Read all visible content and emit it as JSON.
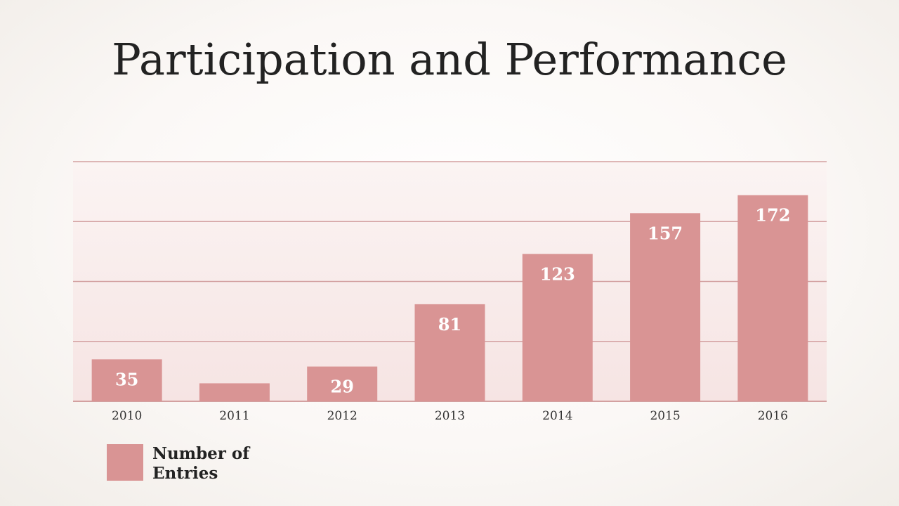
{
  "slide": {
    "title": "Participation and Performance"
  },
  "chart_data": {
    "type": "bar",
    "title": "Participation and Performance",
    "categories": [
      "2010",
      "2011",
      "2012",
      "2013",
      "2014",
      "2015",
      "2016"
    ],
    "series": [
      {
        "name": "Number of Entries",
        "values": [
          35,
          15,
          29,
          81,
          123,
          157,
          172
        ],
        "data_labels": [
          "35",
          "",
          "29",
          "81",
          "123",
          "157",
          "172"
        ],
        "color": "#d99494"
      }
    ],
    "ylim": [
      0,
      200
    ],
    "gridlines": [
      0,
      50,
      100,
      150,
      200
    ],
    "grid": true,
    "grid_color": "#d3a0a0",
    "legend_position": "bottom-left",
    "xlabel": "",
    "ylabel": ""
  },
  "legend": {
    "label": "Number of Entries",
    "color": "#d99494"
  }
}
